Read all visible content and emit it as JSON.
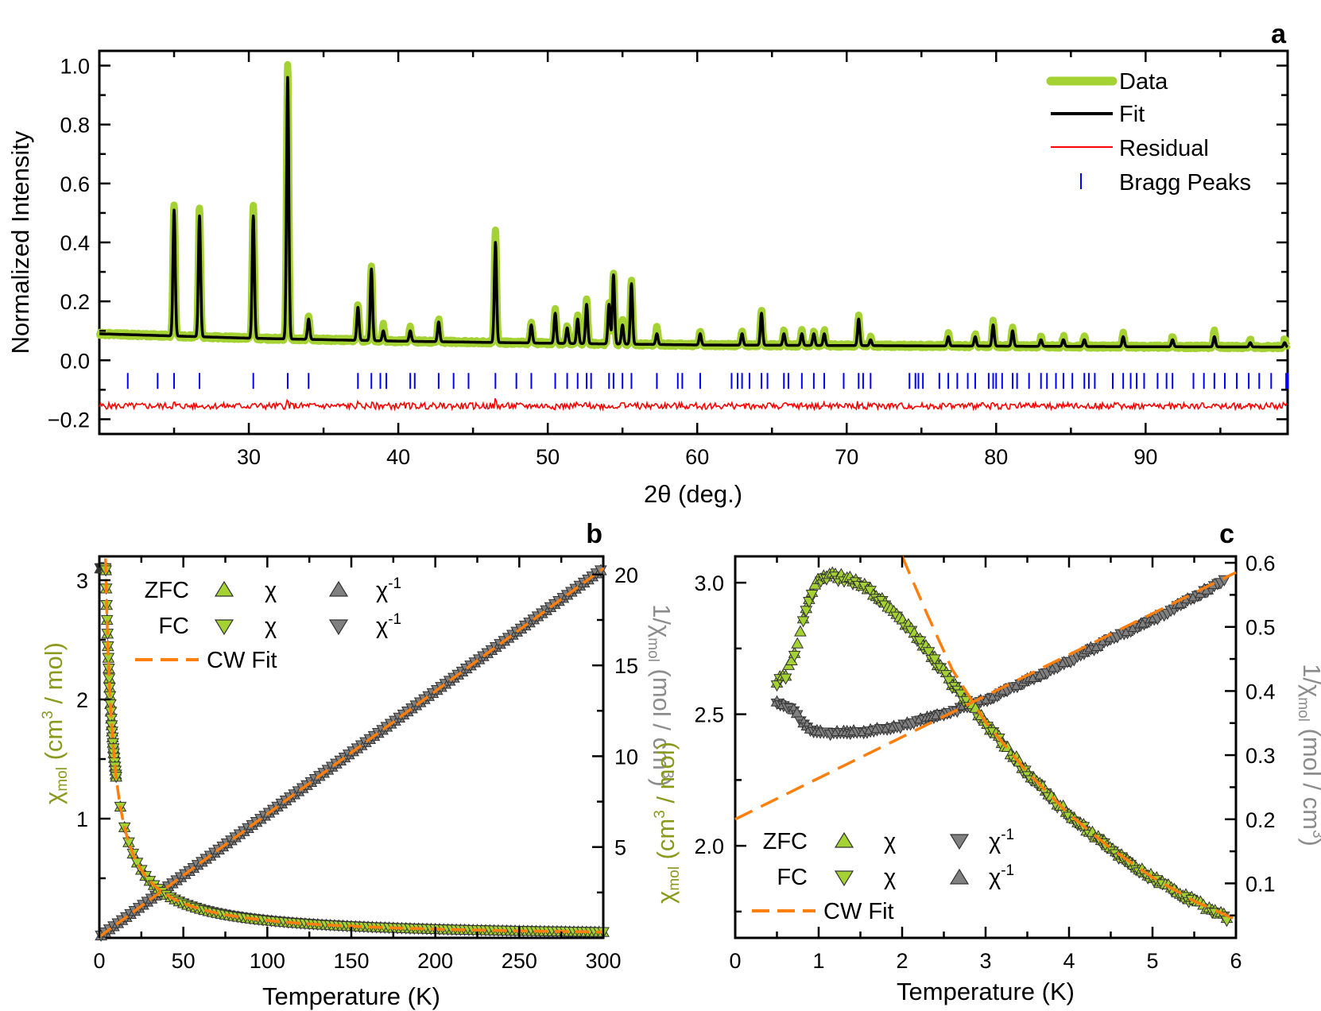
{
  "colors": {
    "data": "#a4d233",
    "fit": "#000000",
    "residual": "#ff0000",
    "bragg": "#0000ff",
    "chi": "#a4d233",
    "chi_inv": "#808080",
    "cw_fit": "#ff7f0e",
    "chi_axis": "#8a9a1c",
    "inv_axis": "#8c8c8c"
  },
  "chart_data": [
    {
      "panel": "a",
      "type": "line",
      "xlabel": "2θ (deg.)",
      "ylabel": "Normalized Intensity",
      "xlim": [
        20,
        99.5
      ],
      "ylim": [
        -0.25,
        1.05
      ],
      "xticks": [
        "30",
        "40",
        "50",
        "60",
        "70",
        "80",
        "90"
      ],
      "yticks": [
        "−0.2",
        "0.0",
        "0.2",
        "0.4",
        "0.6",
        "0.8",
        "1.0"
      ],
      "legend": {
        "position": "top-right",
        "entries": [
          "Data",
          "Fit",
          "Residual",
          "Bragg Peaks"
        ]
      },
      "background": {
        "x": [
          20,
          30,
          40,
          50,
          60,
          70,
          80,
          90,
          99.5
        ],
        "y": [
          0.09,
          0.075,
          0.065,
          0.058,
          0.052,
          0.05,
          0.048,
          0.046,
          0.045
        ]
      },
      "peaks": [
        {
          "x": 25.0,
          "data": 0.53,
          "fit": 0.51
        },
        {
          "x": 26.7,
          "data": 0.52,
          "fit": 0.49
        },
        {
          "x": 30.3,
          "data": 0.53,
          "fit": 0.49
        },
        {
          "x": 32.6,
          "data": 1.0,
          "fit": 0.96
        },
        {
          "x": 34.0,
          "data": 0.15,
          "fit": 0.14
        },
        {
          "x": 37.3,
          "data": 0.19,
          "fit": 0.18
        },
        {
          "x": 38.2,
          "data": 0.32,
          "fit": 0.31
        },
        {
          "x": 39.0,
          "data": 0.12,
          "fit": 0.1
        },
        {
          "x": 40.8,
          "data": 0.11,
          "fit": 0.1
        },
        {
          "x": 42.7,
          "data": 0.14,
          "fit": 0.13
        },
        {
          "x": 46.5,
          "data": 0.44,
          "fit": 0.4
        },
        {
          "x": 48.9,
          "data": 0.13,
          "fit": 0.12
        },
        {
          "x": 50.5,
          "data": 0.17,
          "fit": 0.16
        },
        {
          "x": 51.3,
          "data": 0.12,
          "fit": 0.11
        },
        {
          "x": 52.0,
          "data": 0.15,
          "fit": 0.14
        },
        {
          "x": 52.6,
          "data": 0.21,
          "fit": 0.19
        },
        {
          "x": 54.1,
          "data": 0.2,
          "fit": 0.19
        },
        {
          "x": 54.4,
          "data": 0.29,
          "fit": 0.29
        },
        {
          "x": 55.0,
          "data": 0.14,
          "fit": 0.12
        },
        {
          "x": 55.6,
          "data": 0.27,
          "fit": 0.26
        },
        {
          "x": 57.3,
          "data": 0.11,
          "fit": 0.09
        },
        {
          "x": 60.2,
          "data": 0.1,
          "fit": 0.09
        },
        {
          "x": 63.0,
          "data": 0.1,
          "fit": 0.09
        },
        {
          "x": 64.3,
          "data": 0.17,
          "fit": 0.16
        },
        {
          "x": 65.8,
          "data": 0.1,
          "fit": 0.09
        },
        {
          "x": 67.0,
          "data": 0.1,
          "fit": 0.09
        },
        {
          "x": 67.8,
          "data": 0.1,
          "fit": 0.09
        },
        {
          "x": 68.5,
          "data": 0.1,
          "fit": 0.09
        },
        {
          "x": 70.8,
          "data": 0.15,
          "fit": 0.14
        },
        {
          "x": 71.6,
          "data": 0.08,
          "fit": 0.07
        },
        {
          "x": 76.8,
          "data": 0.09,
          "fit": 0.08
        },
        {
          "x": 78.6,
          "data": 0.09,
          "fit": 0.08
        },
        {
          "x": 79.8,
          "data": 0.13,
          "fit": 0.12
        },
        {
          "x": 81.1,
          "data": 0.11,
          "fit": 0.1
        },
        {
          "x": 83.0,
          "data": 0.08,
          "fit": 0.07
        },
        {
          "x": 84.5,
          "data": 0.08,
          "fit": 0.07
        },
        {
          "x": 85.9,
          "data": 0.08,
          "fit": 0.07
        },
        {
          "x": 88.5,
          "data": 0.09,
          "fit": 0.08
        },
        {
          "x": 91.8,
          "data": 0.08,
          "fit": 0.07
        },
        {
          "x": 94.6,
          "data": 0.1,
          "fit": 0.08
        },
        {
          "x": 97.0,
          "data": 0.07,
          "fit": 0.06
        },
        {
          "x": 99.3,
          "data": 0.07,
          "fit": 0.06
        }
      ],
      "residual_level": -0.155,
      "bragg_level": -0.07,
      "bragg_positions": [
        21.9,
        23.9,
        25.0,
        26.7,
        30.3,
        32.6,
        34.0,
        37.3,
        38.2,
        38.8,
        39.2,
        40.8,
        41.1,
        42.7,
        43.7,
        44.7,
        46.5,
        47.9,
        48.9,
        50.5,
        51.3,
        52.0,
        52.6,
        52.9,
        54.1,
        54.4,
        55.0,
        55.6,
        57.3,
        58.7,
        59.0,
        60.2,
        62.3,
        62.7,
        63.0,
        63.5,
        64.3,
        64.7,
        65.8,
        66.1,
        67.0,
        67.8,
        68.5,
        69.8,
        70.8,
        71.1,
        71.6,
        74.2,
        74.6,
        74.8,
        75.1,
        76.2,
        76.8,
        77.4,
        78.1,
        78.6,
        79.5,
        79.8,
        80.0,
        80.4,
        81.1,
        81.4,
        82.2,
        83.0,
        83.4,
        84.0,
        84.5,
        85.1,
        85.9,
        86.2,
        86.6,
        87.8,
        88.5,
        89.0,
        89.4,
        89.9,
        90.8,
        91.4,
        91.8,
        93.2,
        93.9,
        94.6,
        95.3,
        96.1,
        96.9,
        97.6,
        98.4,
        99.4,
        99.5
      ]
    },
    {
      "panel": "b",
      "type": "scatter",
      "xlabel": "Temperature (K)",
      "ylabel": "χmol (cm3 / mol)",
      "y2label": "1/χmol (mol / cm3)",
      "xlim": [
        0,
        300
      ],
      "ylim": [
        0,
        3.2
      ],
      "y2lim": [
        0,
        21
      ],
      "xticks": [
        "0",
        "50",
        "100",
        "150",
        "200",
        "250",
        "300"
      ],
      "yticks": [
        "1",
        "2",
        "3"
      ],
      "y2ticks": [
        "5",
        "10",
        "15",
        "20"
      ],
      "legend": {
        "position": "top-left",
        "rows": [
          [
            "ZFC",
            "χ",
            "χ-1"
          ],
          [
            "FC",
            "χ",
            "χ-1"
          ],
          [
            "CW Fit"
          ]
        ]
      },
      "curie_weiss": {
        "C": 14.8,
        "theta": -0.95
      }
    },
    {
      "panel": "c",
      "type": "scatter",
      "xlabel": "Temperature (K)",
      "xlim": [
        0,
        6
      ],
      "ylim": [
        1.65,
        3.1
      ],
      "y2lim": [
        0.015,
        0.61
      ],
      "xticks": [
        "0",
        "1",
        "2",
        "3",
        "4",
        "5",
        "6"
      ],
      "yticks": [
        "2.0",
        "2.5",
        "3.0"
      ],
      "y2ticks": [
        "0.1",
        "0.2",
        "0.3",
        "0.4",
        "0.5",
        "0.6"
      ],
      "legend": {
        "position": "bottom-left",
        "rows": [
          [
            "ZFC",
            "χ",
            "χ-1"
          ],
          [
            "FC",
            "χ",
            "χ-1"
          ],
          [
            "CW Fit"
          ]
        ]
      },
      "chi_points": {
        "x": [
          0.5,
          0.6,
          0.7,
          0.8,
          0.9,
          1.0,
          1.1,
          1.2,
          1.3,
          1.5,
          1.7,
          2.0,
          2.3,
          2.6,
          3.0,
          3.5,
          4.0,
          4.5,
          5.0,
          5.5,
          5.9
        ],
        "y": [
          2.63,
          2.65,
          2.72,
          2.85,
          2.96,
          3.02,
          3.03,
          3.03,
          3.02,
          3.0,
          2.95,
          2.86,
          2.75,
          2.62,
          2.47,
          2.28,
          2.12,
          1.99,
          1.88,
          1.79,
          1.73
        ]
      },
      "inv_points": {
        "x": [
          0.5,
          0.6,
          0.7,
          0.8,
          0.9,
          1.0,
          1.2,
          1.5,
          1.8,
          2.1,
          2.5,
          3.0,
          3.5,
          4.0,
          4.5,
          5.0,
          5.5,
          5.9
        ],
        "y": [
          0.38,
          0.377,
          0.368,
          0.35,
          0.34,
          0.335,
          0.333,
          0.335,
          0.34,
          0.348,
          0.363,
          0.385,
          0.415,
          0.445,
          0.48,
          0.51,
          0.545,
          0.575
        ]
      },
      "cw_chi": {
        "x": [
          2.0,
          2.3,
          2.6,
          3.0,
          3.5,
          4.0,
          4.5,
          5.0,
          5.5,
          6.0
        ],
        "y": [
          3.1,
          2.88,
          2.67,
          2.47,
          2.28,
          2.12,
          1.99,
          1.88,
          1.79,
          1.72
        ]
      },
      "cw_inv": {
        "x": [
          0,
          6
        ],
        "y": [
          0.2,
          0.585
        ]
      }
    }
  ],
  "panel_a": {
    "label": "a",
    "xlabel": "2θ (deg.)",
    "ylabel": "Normalized Intensity",
    "legend": [
      "Data",
      "Fit",
      "Residual",
      "Bragg Peaks"
    ]
  },
  "panel_b": {
    "label": "b",
    "xlabel": "Temperature (K)",
    "ylab_chi": "χ",
    "ylab_sub": "mol",
    "ylab_unit1": " (cm",
    "ylab_sup": "3",
    "ylab_unit2": " / mol)",
    "y2lab_pre": "1/",
    "y2lab_chi": "χ",
    "y2lab_sub": "mol",
    "y2lab_unit1": " (mol / cm",
    "y2lab_sup": "3",
    "y2lab_unit2": ")",
    "leg_zfc": "ZFC",
    "leg_fc": "FC",
    "leg_chi": "χ",
    "leg_inv": "χ",
    "leg_inv_sup": "-1",
    "leg_cw": "CW Fit"
  },
  "panel_c": {
    "label": "c",
    "xlabel": "Temperature (K)",
    "y2lab_pre": "1/",
    "y2lab_chi": "χ",
    "y2lab_sub": "mol",
    "y2lab_unit1": " (mol / cm",
    "y2lab_sup": "3",
    "y2lab_unit2": ")",
    "leg_zfc": "ZFC",
    "leg_fc": "FC",
    "leg_chi": "χ",
    "leg_inv": "χ",
    "leg_inv_sup": "-1",
    "leg_cw": "CW Fit"
  },
  "middle_label": {
    "chi": "χ",
    "sub": "mol",
    "unit1": " (cm",
    "sup": "3",
    "unit2": " / mol)"
  }
}
